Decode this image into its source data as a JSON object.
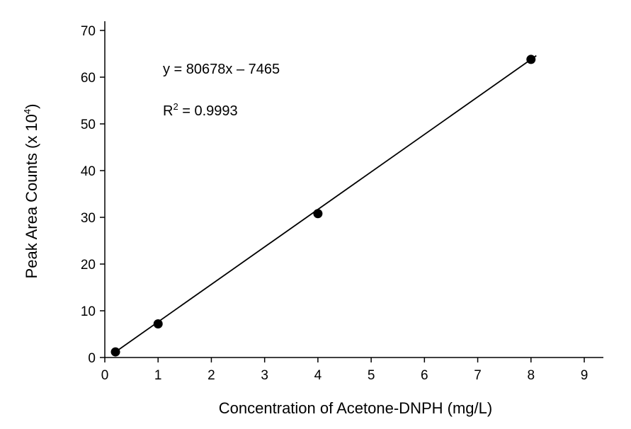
{
  "chart_data": {
    "type": "scatter",
    "title": "",
    "xlabel": "Concentration of Acetone-DNPH (mg/L)",
    "ylabel": {
      "prefix": "Peak Area Counts (x 10",
      "exponent": "4",
      "suffix": ")"
    },
    "xlim": [
      0,
      9
    ],
    "ylim": [
      0,
      70
    ],
    "x_ticks": [
      "0",
      "1",
      "2",
      "3",
      "4",
      "5",
      "6",
      "7",
      "8",
      "9"
    ],
    "y_ticks": [
      "0",
      "10",
      "20",
      "30",
      "40",
      "50",
      "60",
      "70"
    ],
    "grid": false,
    "legend": "none",
    "series": [
      {
        "points": [
          {
            "x": 0.2,
            "y": 1.2
          },
          {
            "x": 1.0,
            "y": 7.2
          },
          {
            "x": 4.0,
            "y": 30.8
          },
          {
            "x": 8.0,
            "y": 63.8
          }
        ],
        "color": "#000000"
      }
    ],
    "trendline": {
      "x": [
        0.2,
        8.1
      ],
      "y": [
        1.2,
        64.6
      ],
      "color": "#000000"
    },
    "annotations": {
      "equation": "y = 80678x – 7465",
      "r_squared": {
        "prefix": "R",
        "exponent": "2",
        "suffix": " = 0.9993"
      }
    }
  }
}
